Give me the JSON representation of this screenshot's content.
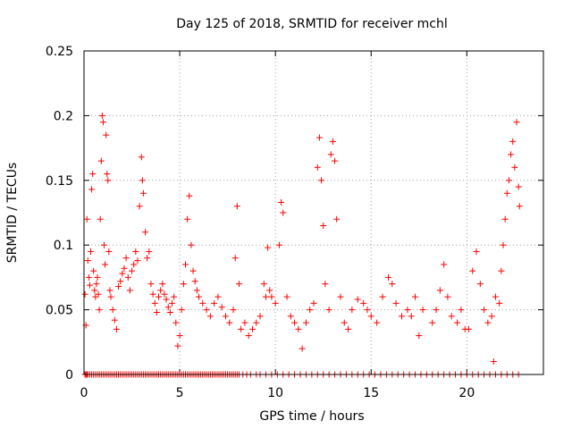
{
  "chart_data": {
    "type": "scatter",
    "title": "Day 125 of 2018, SRMTID for receiver mchl",
    "xlabel": "GPS time / hours",
    "ylabel": "SRMTID / TECUs",
    "xlim": [
      0,
      24
    ],
    "ylim": [
      0,
      0.25
    ],
    "x_ticks": [
      0,
      5,
      10,
      15,
      20
    ],
    "x_tick_labels": [
      "0",
      "5",
      "10",
      "15",
      "20"
    ],
    "y_ticks": [
      0,
      0.05,
      0.1,
      0.15,
      0.2,
      0.25
    ],
    "y_tick_labels": [
      "0",
      "0.05",
      "0.1",
      "0.15",
      "0.2",
      "0.25"
    ],
    "grid": true,
    "marker": "plus",
    "series": [
      {
        "name": "SRMTID",
        "color": "#ff0000",
        "points": [
          [
            0.05,
            0.062
          ],
          [
            0.1,
            0.038
          ],
          [
            0.15,
            0.12
          ],
          [
            0.2,
            0.088
          ],
          [
            0.25,
            0.075
          ],
          [
            0.3,
            0.069
          ],
          [
            0.35,
            0.095
          ],
          [
            0.4,
            0.143
          ],
          [
            0.45,
            0.155
          ],
          [
            0.5,
            0.08
          ],
          [
            0.55,
            0.065
          ],
          [
            0.6,
            0.06
          ],
          [
            0.65,
            0.07
          ],
          [
            0.7,
            0.075
          ],
          [
            0.75,
            0.062
          ],
          [
            0.8,
            0.05
          ],
          [
            0.85,
            0.12
          ],
          [
            0.9,
            0.165
          ],
          [
            0.95,
            0.2
          ],
          [
            1.0,
            0.195
          ],
          [
            1.05,
            0.1
          ],
          [
            1.1,
            0.085
          ],
          [
            1.15,
            0.185
          ],
          [
            1.2,
            0.155
          ],
          [
            1.25,
            0.15
          ],
          [
            1.3,
            0.095
          ],
          [
            1.35,
            0.065
          ],
          [
            1.4,
            0.06
          ],
          [
            1.5,
            0.05
          ],
          [
            1.6,
            0.042
          ],
          [
            1.7,
            0.035
          ],
          [
            1.8,
            0.068
          ],
          [
            1.9,
            0.072
          ],
          [
            2.0,
            0.078
          ],
          [
            2.1,
            0.082
          ],
          [
            2.2,
            0.09
          ],
          [
            2.3,
            0.075
          ],
          [
            2.4,
            0.065
          ],
          [
            2.5,
            0.08
          ],
          [
            2.6,
            0.085
          ],
          [
            2.7,
            0.095
          ],
          [
            2.8,
            0.088
          ],
          [
            2.9,
            0.13
          ],
          [
            3.0,
            0.168
          ],
          [
            3.05,
            0.15
          ],
          [
            3.1,
            0.14
          ],
          [
            3.2,
            0.11
          ],
          [
            3.3,
            0.09
          ],
          [
            3.4,
            0.095
          ],
          [
            3.5,
            0.07
          ],
          [
            3.6,
            0.062
          ],
          [
            3.7,
            0.055
          ],
          [
            3.8,
            0.048
          ],
          [
            3.9,
            0.06
          ],
          [
            4.0,
            0.065
          ],
          [
            4.1,
            0.07
          ],
          [
            4.2,
            0.062
          ],
          [
            4.3,
            0.058
          ],
          [
            4.4,
            0.052
          ],
          [
            4.5,
            0.048
          ],
          [
            4.6,
            0.055
          ],
          [
            4.7,
            0.06
          ],
          [
            4.8,
            0.04
          ],
          [
            4.9,
            0.022
          ],
          [
            5.0,
            0.03
          ],
          [
            5.1,
            0.05
          ],
          [
            5.2,
            0.07
          ],
          [
            5.3,
            0.085
          ],
          [
            5.4,
            0.12
          ],
          [
            5.5,
            0.138
          ],
          [
            5.6,
            0.1
          ],
          [
            5.7,
            0.08
          ],
          [
            5.8,
            0.072
          ],
          [
            5.9,
            0.065
          ],
          [
            6.0,
            0.06
          ],
          [
            6.2,
            0.055
          ],
          [
            6.4,
            0.05
          ],
          [
            6.6,
            0.045
          ],
          [
            6.8,
            0.055
          ],
          [
            7.0,
            0.06
          ],
          [
            7.2,
            0.052
          ],
          [
            7.4,
            0.045
          ],
          [
            7.6,
            0.04
          ],
          [
            7.8,
            0.05
          ],
          [
            7.9,
            0.09
          ],
          [
            8.0,
            0.13
          ],
          [
            8.1,
            0.07
          ],
          [
            8.2,
            0.035
          ],
          [
            8.4,
            0.04
          ],
          [
            8.6,
            0.03
          ],
          [
            8.8,
            0.035
          ],
          [
            9.0,
            0.04
          ],
          [
            9.2,
            0.045
          ],
          [
            9.4,
            0.07
          ],
          [
            9.5,
            0.06
          ],
          [
            9.6,
            0.098
          ],
          [
            9.7,
            0.065
          ],
          [
            9.8,
            0.06
          ],
          [
            10.0,
            0.055
          ],
          [
            10.2,
            0.1
          ],
          [
            10.3,
            0.133
          ],
          [
            10.4,
            0.125
          ],
          [
            10.6,
            0.06
          ],
          [
            10.8,
            0.045
          ],
          [
            11.0,
            0.04
          ],
          [
            11.2,
            0.035
          ],
          [
            11.4,
            0.02
          ],
          [
            11.6,
            0.04
          ],
          [
            11.8,
            0.05
          ],
          [
            12.0,
            0.055
          ],
          [
            12.2,
            0.16
          ],
          [
            12.3,
            0.183
          ],
          [
            12.4,
            0.15
          ],
          [
            12.5,
            0.115
          ],
          [
            12.6,
            0.07
          ],
          [
            12.8,
            0.05
          ],
          [
            12.9,
            0.17
          ],
          [
            13.0,
            0.18
          ],
          [
            13.1,
            0.165
          ],
          [
            13.2,
            0.12
          ],
          [
            13.4,
            0.06
          ],
          [
            13.6,
            0.04
          ],
          [
            13.8,
            0.035
          ],
          [
            14.0,
            0.05
          ],
          [
            14.3,
            0.058
          ],
          [
            14.6,
            0.055
          ],
          [
            14.8,
            0.05
          ],
          [
            15.0,
            0.045
          ],
          [
            15.3,
            0.04
          ],
          [
            15.6,
            0.06
          ],
          [
            15.9,
            0.075
          ],
          [
            16.1,
            0.07
          ],
          [
            16.3,
            0.055
          ],
          [
            16.6,
            0.045
          ],
          [
            16.9,
            0.05
          ],
          [
            17.1,
            0.045
          ],
          [
            17.3,
            0.06
          ],
          [
            17.5,
            0.03
          ],
          [
            17.7,
            0.05
          ],
          [
            18.2,
            0.04
          ],
          [
            18.4,
            0.05
          ],
          [
            18.6,
            0.065
          ],
          [
            18.8,
            0.085
          ],
          [
            19.0,
            0.06
          ],
          [
            19.2,
            0.045
          ],
          [
            19.5,
            0.04
          ],
          [
            19.7,
            0.05
          ],
          [
            19.9,
            0.035
          ],
          [
            20.1,
            0.035
          ],
          [
            20.3,
            0.08
          ],
          [
            20.5,
            0.095
          ],
          [
            20.7,
            0.07
          ],
          [
            20.9,
            0.05
          ],
          [
            21.1,
            0.04
          ],
          [
            21.3,
            0.045
          ],
          [
            21.4,
            0.01
          ],
          [
            21.5,
            0.06
          ],
          [
            21.7,
            0.055
          ],
          [
            21.8,
            0.08
          ],
          [
            21.9,
            0.1
          ],
          [
            22.0,
            0.12
          ],
          [
            22.1,
            0.14
          ],
          [
            22.2,
            0.15
          ],
          [
            22.3,
            0.17
          ],
          [
            22.4,
            0.18
          ],
          [
            22.5,
            0.16
          ],
          [
            22.6,
            0.195
          ],
          [
            22.7,
            0.145
          ],
          [
            22.75,
            0.13
          ]
        ],
        "zero_points_x": [
          0.05,
          0.1,
          0.15,
          0.2,
          0.3,
          0.4,
          0.5,
          0.6,
          0.7,
          0.8,
          0.9,
          1.0,
          1.1,
          1.2,
          1.3,
          1.4,
          1.5,
          1.6,
          1.7,
          1.8,
          1.9,
          2.0,
          2.1,
          2.2,
          2.3,
          2.4,
          2.5,
          2.6,
          2.7,
          2.8,
          2.9,
          3.0,
          3.1,
          3.2,
          3.3,
          3.4,
          3.5,
          3.6,
          3.7,
          3.8,
          3.9,
          4.0,
          4.1,
          4.2,
          4.3,
          4.4,
          4.5,
          4.6,
          4.7,
          4.8,
          4.9,
          5.0,
          5.1,
          5.2,
          5.3,
          5.4,
          5.5,
          5.6,
          5.7,
          5.8,
          5.9,
          6.0,
          6.1,
          6.2,
          6.3,
          6.4,
          6.5,
          6.6,
          6.7,
          6.8,
          6.9,
          7.0,
          7.1,
          7.2,
          7.3,
          7.4,
          7.5,
          7.6,
          7.7,
          7.8,
          7.9,
          8.0,
          8.1,
          8.3,
          8.5,
          8.7,
          9.0,
          9.2,
          9.5,
          9.8,
          10.1,
          10.4,
          10.7,
          11.0,
          11.3,
          11.6,
          11.9,
          12.2,
          12.5,
          12.8,
          13.1,
          13.4,
          13.7,
          14.0,
          14.3,
          14.6,
          14.9,
          15.2,
          15.5,
          15.8,
          16.1,
          16.4,
          16.7,
          17.0,
          17.3,
          17.6,
          17.9,
          18.2,
          18.5,
          18.8,
          19.1,
          19.4,
          19.7,
          20.0,
          20.3,
          20.6,
          20.9,
          21.2,
          21.5,
          21.8,
          22.1,
          22.4,
          22.7
        ]
      }
    ]
  }
}
